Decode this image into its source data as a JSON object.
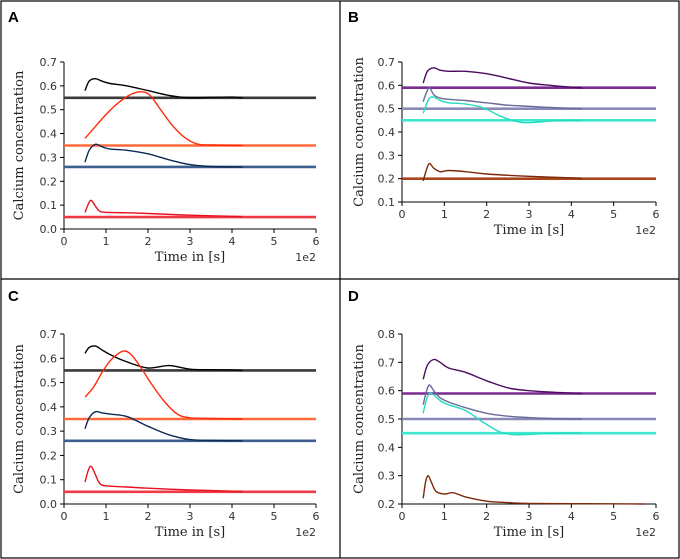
{
  "chart_data": [
    {
      "id": "A",
      "panel_label": "A",
      "type": "line",
      "xlabel": "Time in [s]",
      "ylabel": "Calcium concentration",
      "x_scale_label": "1e2",
      "xlim": [
        0,
        6
      ],
      "ylim": [
        0,
        0.7
      ],
      "xticks": [
        0,
        1,
        2,
        3,
        4,
        5,
        6
      ],
      "yticks": [
        0.0,
        0.1,
        0.2,
        0.3,
        0.4,
        0.5,
        0.6,
        0.7
      ],
      "baselines": [
        {
          "name": "black steady state",
          "y": 0.55,
          "color": "#3a3a3a"
        },
        {
          "name": "orange steady state",
          "y": 0.35,
          "color": "#ff6a3d"
        },
        {
          "name": "blue steady state",
          "y": 0.26,
          "color": "#3d5f8f"
        },
        {
          "name": "red steady state",
          "y": 0.05,
          "color": "#f03a47"
        }
      ],
      "series": [
        {
          "name": "black trace",
          "color": "#000000",
          "x": [
            0.5,
            0.6,
            0.75,
            0.9,
            1.1,
            1.5,
            2.0,
            2.5,
            3.0,
            3.5,
            4.0,
            4.25
          ],
          "y": [
            0.58,
            0.62,
            0.63,
            0.62,
            0.61,
            0.6,
            0.58,
            0.56,
            0.55,
            0.552,
            0.553,
            0.55
          ]
        },
        {
          "name": "orange trace",
          "color": "#ff2a0a",
          "x": [
            0.5,
            0.7,
            1.0,
            1.3,
            1.6,
            1.85,
            2.05,
            2.3,
            2.6,
            2.9,
            3.2,
            3.5,
            4.25
          ],
          "y": [
            0.38,
            0.42,
            0.48,
            0.53,
            0.565,
            0.575,
            0.56,
            0.5,
            0.43,
            0.38,
            0.355,
            0.352,
            0.35
          ]
        },
        {
          "name": "blue trace",
          "color": "#0d2a52",
          "x": [
            0.5,
            0.6,
            0.75,
            0.9,
            1.1,
            1.5,
            2.0,
            2.5,
            3.0,
            3.5,
            4.25
          ],
          "y": [
            0.28,
            0.33,
            0.355,
            0.345,
            0.335,
            0.33,
            0.315,
            0.29,
            0.27,
            0.262,
            0.26
          ]
        },
        {
          "name": "red trace",
          "color": "#e8101f",
          "x": [
            0.5,
            0.58,
            0.65,
            0.75,
            0.85,
            1.0,
            1.5,
            2.0,
            3.0,
            4.25
          ],
          "y": [
            0.07,
            0.105,
            0.12,
            0.095,
            0.075,
            0.07,
            0.068,
            0.065,
            0.058,
            0.052
          ]
        }
      ]
    },
    {
      "id": "B",
      "panel_label": "B",
      "type": "line",
      "xlabel": "Time in [s]",
      "ylabel": "Calcium concentration",
      "x_scale_label": "1e2",
      "xlim": [
        0,
        6
      ],
      "ylim": [
        0.1,
        0.7
      ],
      "xticks": [
        0,
        1,
        2,
        3,
        4,
        5,
        6
      ],
      "yticks": [
        0.1,
        0.2,
        0.3,
        0.4,
        0.5,
        0.6,
        0.7
      ],
      "baselines": [
        {
          "name": "purple steady state",
          "y": 0.59,
          "color": "#7a2a90"
        },
        {
          "name": "lavender steady state",
          "y": 0.5,
          "color": "#8a8ab8"
        },
        {
          "name": "cyan steady state",
          "y": 0.45,
          "color": "#3ee8d0"
        },
        {
          "name": "brown steady state",
          "y": 0.2,
          "color": "#a8451a"
        }
      ],
      "series": [
        {
          "name": "purple trace",
          "color": "#4b0a5e",
          "x": [
            0.5,
            0.6,
            0.75,
            0.9,
            1.1,
            1.5,
            2.0,
            2.5,
            3.0,
            3.5,
            4.0,
            4.25
          ],
          "y": [
            0.61,
            0.66,
            0.675,
            0.665,
            0.66,
            0.66,
            0.65,
            0.63,
            0.61,
            0.6,
            0.592,
            0.59
          ]
        },
        {
          "name": "lavender trace",
          "color": "#6a6a9a",
          "x": [
            0.5,
            0.58,
            0.65,
            0.75,
            0.9,
            1.1,
            1.5,
            2.0,
            2.5,
            3.0,
            3.5,
            4.25
          ],
          "y": [
            0.53,
            0.57,
            0.59,
            0.56,
            0.545,
            0.54,
            0.535,
            0.525,
            0.515,
            0.51,
            0.505,
            0.5
          ]
        },
        {
          "name": "cyan trace",
          "color": "#22dcc0",
          "x": [
            0.5,
            0.58,
            0.65,
            0.75,
            0.9,
            1.1,
            1.5,
            1.9,
            2.3,
            2.6,
            2.9,
            3.2,
            3.6,
            4.25
          ],
          "y": [
            0.48,
            0.52,
            0.545,
            0.55,
            0.535,
            0.525,
            0.52,
            0.505,
            0.47,
            0.45,
            0.44,
            0.442,
            0.448,
            0.45
          ]
        },
        {
          "name": "brown trace",
          "color": "#7a2a0a",
          "x": [
            0.5,
            0.58,
            0.65,
            0.75,
            0.9,
            1.1,
            1.5,
            2.0,
            3.0,
            4.25
          ],
          "y": [
            0.19,
            0.24,
            0.265,
            0.245,
            0.23,
            0.235,
            0.23,
            0.22,
            0.21,
            0.202
          ]
        }
      ]
    },
    {
      "id": "C",
      "panel_label": "C",
      "type": "line",
      "xlabel": "Time in [s]",
      "ylabel": "Calcium concentration",
      "x_scale_label": "1e2",
      "xlim": [
        0,
        6
      ],
      "ylim": [
        0,
        0.7
      ],
      "xticks": [
        0,
        1,
        2,
        3,
        4,
        5,
        6
      ],
      "yticks": [
        0.0,
        0.1,
        0.2,
        0.3,
        0.4,
        0.5,
        0.6,
        0.7
      ],
      "baselines": [
        {
          "name": "black steady state",
          "y": 0.55,
          "color": "#3a3a3a"
        },
        {
          "name": "orange steady state",
          "y": 0.35,
          "color": "#ff6a3d"
        },
        {
          "name": "blue steady state",
          "y": 0.26,
          "color": "#3d5f8f"
        },
        {
          "name": "red steady state",
          "y": 0.05,
          "color": "#f03a47"
        }
      ],
      "series": [
        {
          "name": "black trace",
          "color": "#000000",
          "x": [
            0.5,
            0.6,
            0.75,
            0.9,
            1.1,
            1.5,
            2.0,
            2.5,
            3.0,
            3.5,
            4.0,
            4.25
          ],
          "y": [
            0.62,
            0.645,
            0.65,
            0.635,
            0.615,
            0.585,
            0.56,
            0.57,
            0.555,
            0.553,
            0.552,
            0.55
          ]
        },
        {
          "name": "orange trace",
          "color": "#ff2a0a",
          "x": [
            0.5,
            0.7,
            0.9,
            1.1,
            1.3,
            1.45,
            1.6,
            1.8,
            2.1,
            2.4,
            2.7,
            3.0,
            3.5,
            4.25
          ],
          "y": [
            0.44,
            0.48,
            0.54,
            0.59,
            0.62,
            0.63,
            0.615,
            0.57,
            0.49,
            0.42,
            0.37,
            0.355,
            0.352,
            0.35
          ]
        },
        {
          "name": "blue trace",
          "color": "#0d2a52",
          "x": [
            0.5,
            0.6,
            0.75,
            0.9,
            1.1,
            1.5,
            2.0,
            2.5,
            3.0,
            3.5,
            4.25
          ],
          "y": [
            0.31,
            0.355,
            0.38,
            0.375,
            0.37,
            0.36,
            0.32,
            0.285,
            0.265,
            0.262,
            0.26
          ]
        },
        {
          "name": "red trace",
          "color": "#e8101f",
          "x": [
            0.5,
            0.58,
            0.65,
            0.75,
            0.85,
            1.0,
            1.5,
            2.0,
            3.0,
            4.25
          ],
          "y": [
            0.09,
            0.14,
            0.155,
            0.12,
            0.085,
            0.075,
            0.07,
            0.065,
            0.058,
            0.052
          ]
        }
      ]
    },
    {
      "id": "D",
      "panel_label": "D",
      "type": "line",
      "xlabel": "Time in [s]",
      "ylabel": "Calcium concentration",
      "x_scale_label": "1e2",
      "xlim": [
        0,
        6
      ],
      "ylim": [
        0.2,
        0.8
      ],
      "xticks": [
        0,
        1,
        2,
        3,
        4,
        5,
        6
      ],
      "yticks": [
        0.2,
        0.3,
        0.4,
        0.5,
        0.6,
        0.7,
        0.8
      ],
      "baselines": [
        {
          "name": "purple steady state",
          "y": 0.59,
          "color": "#7a2a90"
        },
        {
          "name": "lavender steady state",
          "y": 0.5,
          "color": "#8a8ab8"
        },
        {
          "name": "cyan steady state",
          "y": 0.45,
          "color": "#3ee8d0"
        }
      ],
      "series": [
        {
          "name": "purple trace",
          "color": "#4b0a5e",
          "x": [
            0.5,
            0.6,
            0.75,
            0.9,
            1.1,
            1.5,
            2.0,
            2.5,
            3.0,
            3.5,
            4.25
          ],
          "y": [
            0.64,
            0.69,
            0.71,
            0.7,
            0.68,
            0.665,
            0.635,
            0.61,
            0.6,
            0.595,
            0.59
          ]
        },
        {
          "name": "lavender trace",
          "color": "#6a6a9a",
          "x": [
            0.5,
            0.58,
            0.65,
            0.75,
            0.9,
            1.1,
            1.5,
            2.0,
            2.5,
            3.0,
            3.5,
            4.25
          ],
          "y": [
            0.55,
            0.6,
            0.62,
            0.6,
            0.575,
            0.56,
            0.54,
            0.52,
            0.51,
            0.505,
            0.502,
            0.5
          ]
        },
        {
          "name": "cyan trace",
          "color": "#22dcc0",
          "x": [
            0.5,
            0.58,
            0.65,
            0.75,
            0.9,
            1.1,
            1.5,
            1.9,
            2.3,
            2.6,
            2.9,
            3.3,
            3.8,
            4.25
          ],
          "y": [
            0.52,
            0.57,
            0.59,
            0.585,
            0.565,
            0.55,
            0.53,
            0.49,
            0.455,
            0.445,
            0.445,
            0.448,
            0.45,
            0.45
          ]
        },
        {
          "name": "brown trace",
          "color": "#7a2a0a",
          "x": [
            0.5,
            0.56,
            0.62,
            0.7,
            0.8,
            1.0,
            1.2,
            1.5,
            2.0,
            2.5,
            3.0,
            4.25,
            5.7
          ],
          "y": [
            0.22,
            0.28,
            0.3,
            0.275,
            0.245,
            0.235,
            0.24,
            0.225,
            0.21,
            0.205,
            0.202,
            0.201,
            0.2
          ]
        }
      ]
    }
  ]
}
